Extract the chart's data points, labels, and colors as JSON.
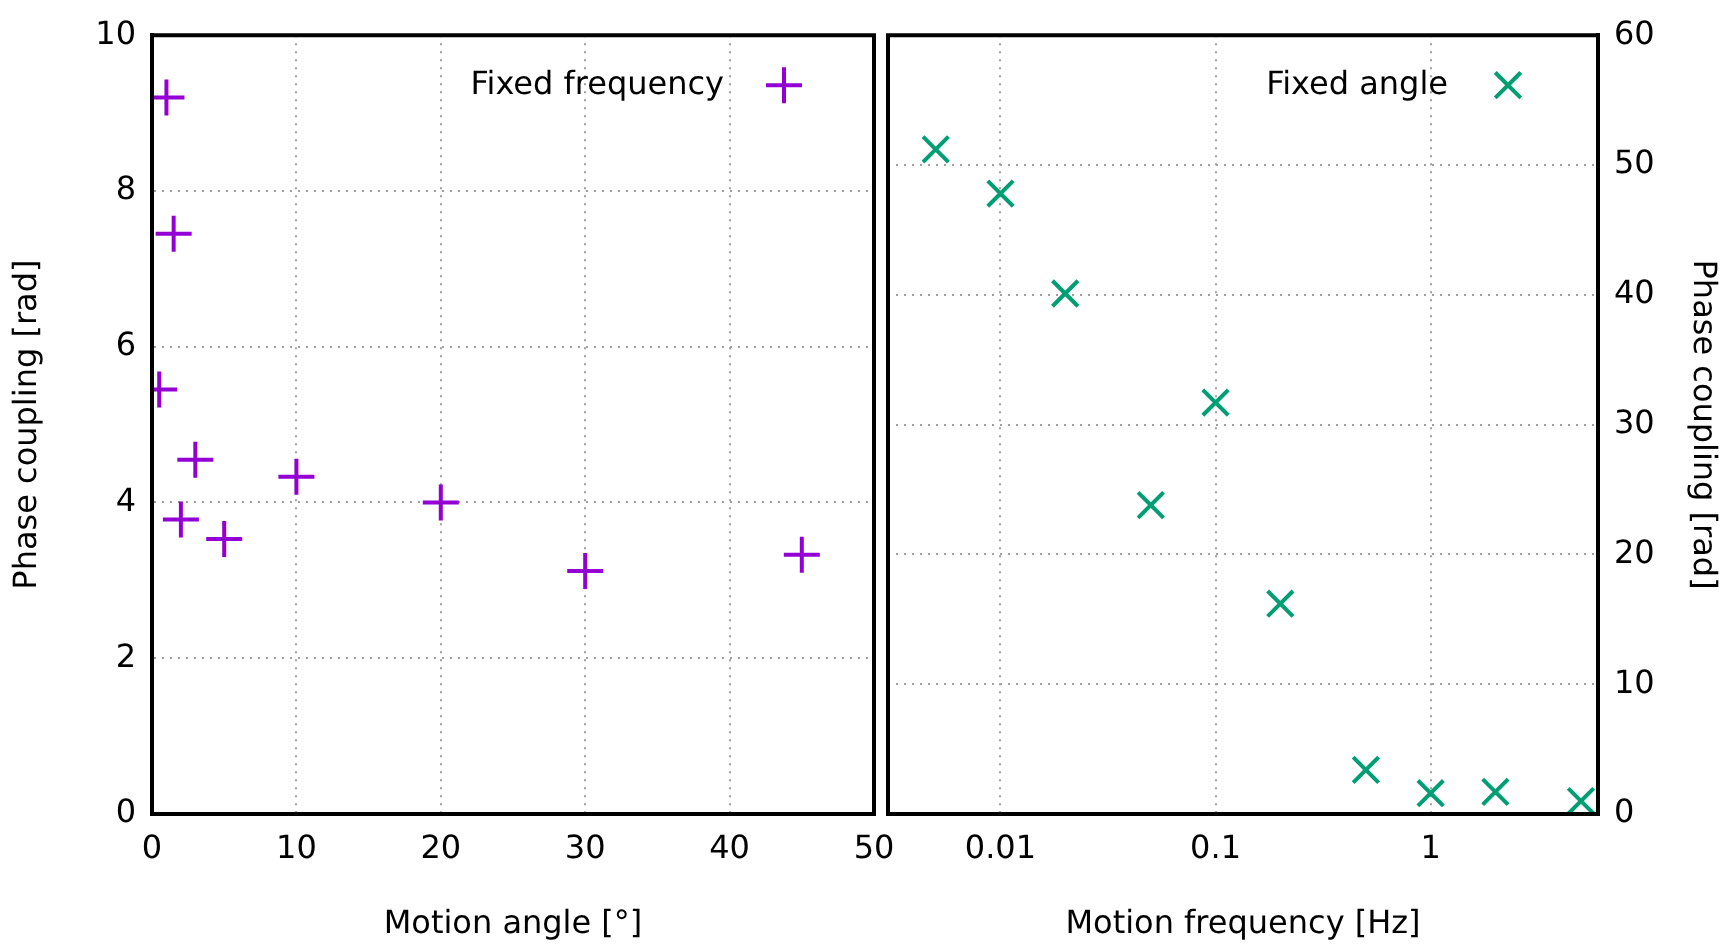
{
  "chart_data": [
    {
      "type": "scatter",
      "xlabel": "Motion angle [°]",
      "ylabel": "Phase coupling [rad]",
      "x": [
        0.5,
        1,
        1.5,
        2,
        3,
        5,
        10,
        20,
        30,
        45
      ],
      "series": [
        {
          "name": "Fixed frequency",
          "color": "#9400d3",
          "values": [
            5.45,
            9.2,
            7.45,
            3.78,
            4.55,
            3.53,
            4.33,
            4.0,
            3.12,
            3.33
          ]
        }
      ],
      "xlim": [
        0,
        50
      ],
      "xticks": [
        0,
        10,
        20,
        30,
        40,
        50
      ],
      "ylim": [
        0,
        10
      ],
      "yticks": [
        0,
        2,
        4,
        6,
        8,
        10
      ],
      "grid": true,
      "legend": "top right",
      "marker": "cross"
    },
    {
      "type": "scatter",
      "xlabel": "Motion frequency [Hz]",
      "y2label": "Phase coupling [rad]",
      "x": [
        0.005,
        0.01,
        0.02,
        0.05,
        0.1,
        0.2,
        0.5,
        1,
        2,
        5
      ],
      "series": [
        {
          "name": "Fixed angle",
          "color": "#009e73",
          "axis": "y2",
          "values": [
            51.2,
            47.8,
            40.1,
            23.8,
            31.7,
            16.2,
            3.4,
            1.6,
            1.7,
            1.0
          ]
        }
      ],
      "xlim": [
        0.003,
        6
      ],
      "xticks": [
        0.01,
        0.1,
        1
      ],
      "log": "x",
      "y2lim": [
        0,
        60
      ],
      "y2ticks": [
        0,
        10,
        20,
        30,
        40,
        50,
        60
      ],
      "grid": true,
      "legend": "top right",
      "marker": "x"
    }
  ]
}
